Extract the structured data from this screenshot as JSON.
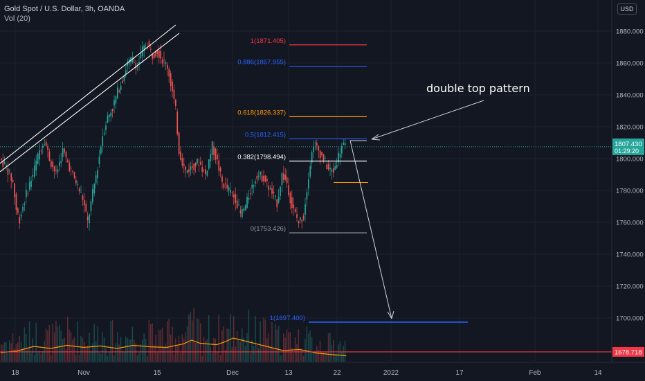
{
  "header": {
    "symbol_line": "Gold Spot / U.S. Dollar, 3h, OANDA",
    "indicator_line": "Vol (20)",
    "currency_button": "USD"
  },
  "annotation": "double top pattern",
  "colors": {
    "background": "#131722",
    "up": "#26a69a",
    "down": "#ef5350",
    "grid": "#1e222d",
    "axis_text": "#b2b5be",
    "price_line": "#26a69a",
    "red_line": "#f23645",
    "fib_red": "#f23645",
    "fib_blue": "#2962ff",
    "fib_orange": "#ff9800",
    "fib_white": "#ffffff",
    "fib_gray": "#9598a1",
    "volume_ma": "#ff9800"
  },
  "chart_data": {
    "type": "candlestick",
    "title": "Gold Spot / U.S. Dollar, 3h, OANDA",
    "y_axis": {
      "ticks": [
        1880,
        1860,
        1840,
        1820,
        1800,
        1780,
        1760,
        1740,
        1720,
        1700
      ],
      "tick_labels": [
        "1880.000",
        "1860.000",
        "1840.000",
        "1820.000",
        "1800.000",
        "1780.000",
        "1760.000",
        "1740.000",
        "1720.000",
        "1700.000"
      ],
      "range": [
        1672,
        1898
      ]
    },
    "x_axis": {
      "labels": [
        "18",
        "Nov",
        "15",
        "Dec",
        "13",
        "22",
        "2022",
        "17",
        "Feb",
        "14"
      ]
    },
    "current_price": {
      "value": "1807.430",
      "countdown": "01:29:20"
    },
    "horizontal_line": {
      "value": "1678.718"
    },
    "fib_levels": [
      {
        "label": "1(1871.405)",
        "value": 1871.405,
        "color": "#f23645"
      },
      {
        "label": "0.886(1857.955)",
        "value": 1857.955,
        "color": "#2962ff"
      },
      {
        "label": "0.618(1826.337)",
        "value": 1826.337,
        "color": "#ff9800"
      },
      {
        "label": "0.5(1812.415)",
        "value": 1812.415,
        "color": "#2962ff"
      },
      {
        "label": "0.382(1798.494)",
        "value": 1798.494,
        "color": "#ffffff"
      },
      {
        "label": "0(1753.426)",
        "value": 1753.426,
        "color": "#9598a1"
      }
    ],
    "projection": {
      "label": "1(1697.400)",
      "value": 1697.4,
      "color": "#2962ff"
    },
    "neckline": {
      "value": 1785
    },
    "price_path": [
      [
        0,
        1800
      ],
      [
        4,
        1795
      ],
      [
        8,
        1785
      ],
      [
        10,
        1768
      ],
      [
        12,
        1762
      ],
      [
        16,
        1778
      ],
      [
        20,
        1790
      ],
      [
        24,
        1805
      ],
      [
        27,
        1812
      ],
      [
        30,
        1800
      ],
      [
        34,
        1790
      ],
      [
        38,
        1805
      ],
      [
        42,
        1795
      ],
      [
        46,
        1785
      ],
      [
        50,
        1775
      ],
      [
        53,
        1760
      ],
      [
        56,
        1778
      ],
      [
        59,
        1795
      ],
      [
        62,
        1815
      ],
      [
        65,
        1826
      ],
      [
        68,
        1832
      ],
      [
        71,
        1842
      ],
      [
        74,
        1850
      ],
      [
        77,
        1860
      ],
      [
        80,
        1862
      ],
      [
        83,
        1858
      ],
      [
        86,
        1868
      ],
      [
        89,
        1872
      ],
      [
        92,
        1865
      ],
      [
        95,
        1868
      ],
      [
        98,
        1862
      ],
      [
        101,
        1858
      ],
      [
        104,
        1842
      ],
      [
        106,
        1830
      ],
      [
        108,
        1805
      ],
      [
        110,
        1798
      ],
      [
        112,
        1792
      ],
      [
        116,
        1795
      ],
      [
        120,
        1798
      ],
      [
        124,
        1790
      ],
      [
        128,
        1808
      ],
      [
        131,
        1798
      ],
      [
        134,
        1785
      ],
      [
        138,
        1780
      ],
      [
        142,
        1775
      ],
      [
        145,
        1765
      ],
      [
        148,
        1770
      ],
      [
        151,
        1780
      ],
      [
        155,
        1790
      ],
      [
        159,
        1788
      ],
      [
        163,
        1780
      ],
      [
        167,
        1772
      ],
      [
        170,
        1790
      ],
      [
        173,
        1785
      ],
      [
        176,
        1770
      ],
      [
        180,
        1760
      ],
      [
        183,
        1764
      ],
      [
        186,
        1790
      ],
      [
        189,
        1810
      ],
      [
        192,
        1805
      ],
      [
        195,
        1800
      ],
      [
        198,
        1793
      ],
      [
        201,
        1792
      ],
      [
        204,
        1802
      ],
      [
        206,
        1808
      ],
      [
        208,
        1807
      ]
    ],
    "volume_ma_path": [
      [
        0,
        0.2
      ],
      [
        10,
        0.28
      ],
      [
        20,
        0.5
      ],
      [
        30,
        0.4
      ],
      [
        40,
        0.55
      ],
      [
        50,
        0.45
      ],
      [
        60,
        0.52
      ],
      [
        70,
        0.4
      ],
      [
        80,
        0.55
      ],
      [
        90,
        0.48
      ],
      [
        100,
        0.45
      ],
      [
        110,
        0.62
      ],
      [
        115,
        0.8
      ],
      [
        120,
        0.65
      ],
      [
        130,
        0.58
      ],
      [
        135,
        0.72
      ],
      [
        140,
        0.9
      ],
      [
        150,
        0.7
      ],
      [
        160,
        0.5
      ],
      [
        170,
        0.3
      ],
      [
        180,
        0.35
      ],
      [
        190,
        0.18
      ],
      [
        200,
        0.1
      ],
      [
        208,
        0.05
      ]
    ]
  }
}
